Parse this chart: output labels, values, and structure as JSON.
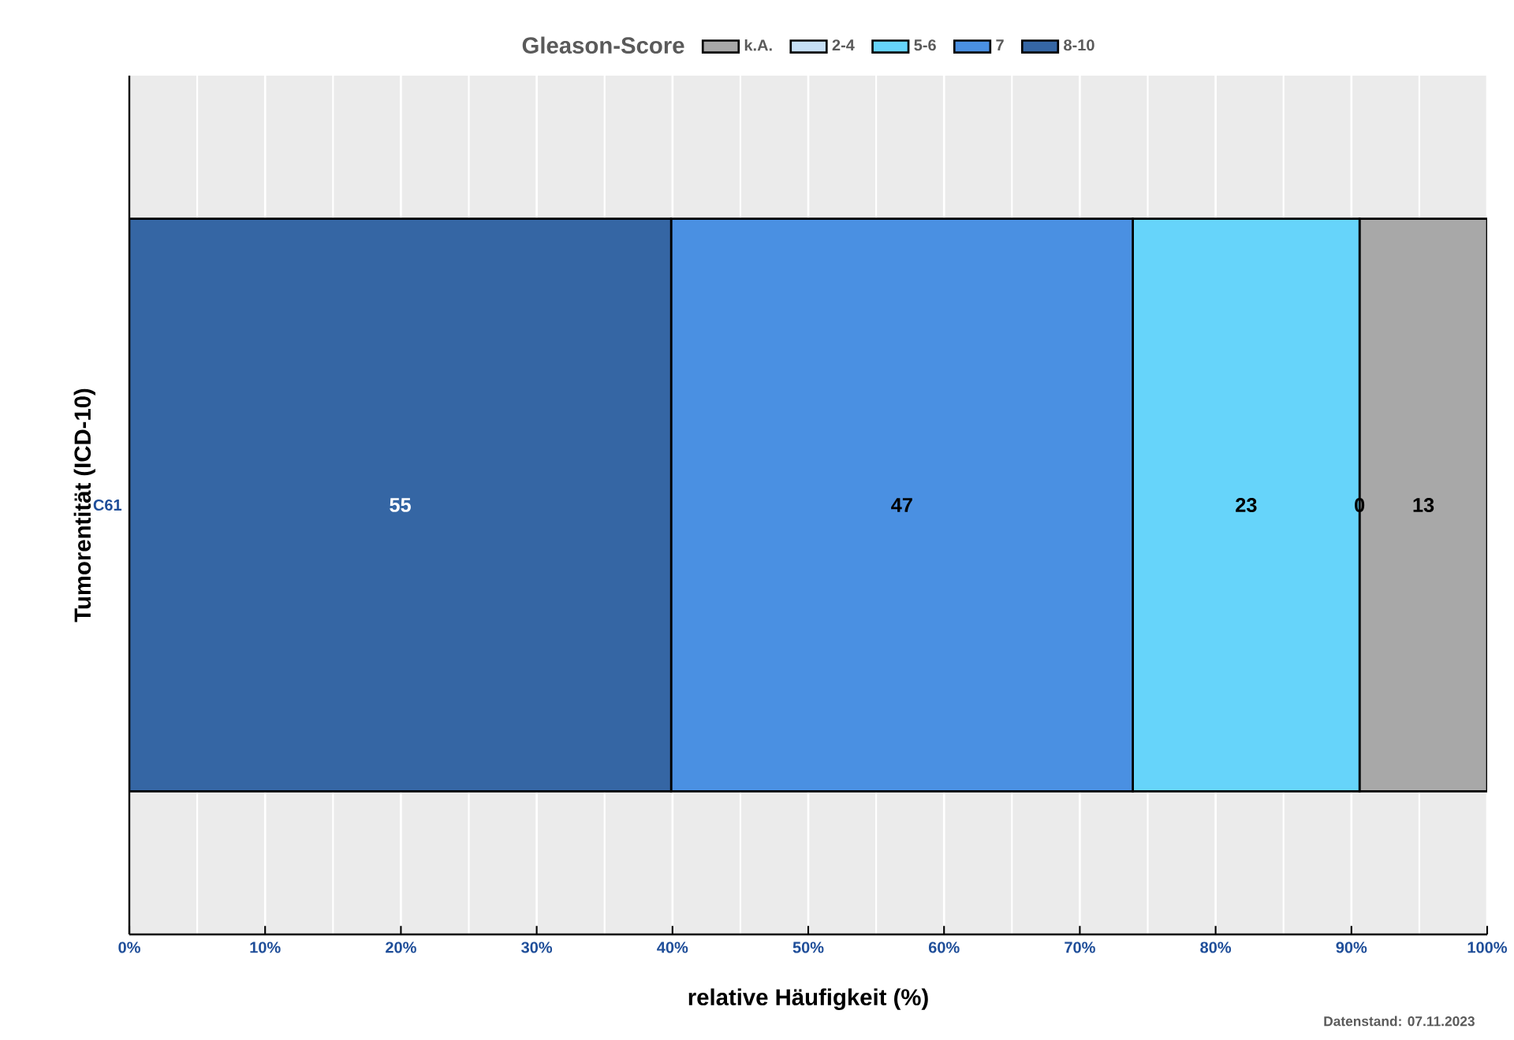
{
  "chart_data": {
    "type": "bar",
    "orientation": "horizontal",
    "stacked": true,
    "categories": [
      "C61"
    ],
    "series": [
      {
        "name": "8-10",
        "color": "#3566a4",
        "values": [
          39.9
        ]
      },
      {
        "name": "7",
        "color": "#4a90e2",
        "values": [
          34.0
        ]
      },
      {
        "name": "5-6",
        "color": "#66d4fa",
        "values": [
          16.7
        ]
      },
      {
        "name": "2-4",
        "color": "#c6dff5",
        "values": [
          0
        ]
      },
      {
        "name": "k.A.",
        "color": "#a8a8a8",
        "values": [
          9.4
        ]
      }
    ],
    "legend_title": "Gleason-Score",
    "legend": "top",
    "xlabel": "relative Häufigkeit (%)",
    "ylabel": "Tumorentität (ICD-10)",
    "xlim": [
      0,
      100
    ],
    "xticks": [
      {
        "value": 0,
        "label": "0%"
      },
      {
        "value": 10,
        "label": "10%"
      },
      {
        "value": 20,
        "label": "20%"
      },
      {
        "value": 30,
        "label": "30%"
      },
      {
        "value": 40,
        "label": "40%"
      },
      {
        "value": 50,
        "label": "50%"
      },
      {
        "value": 60,
        "label": "60%"
      },
      {
        "value": 70,
        "label": "70%"
      },
      {
        "value": 80,
        "label": "80%"
      },
      {
        "value": 90,
        "label": "90%"
      },
      {
        "value": 100,
        "label": "100%"
      }
    ],
    "grid": "x",
    "annotations": [
      "55",
      "47",
      "23",
      "0",
      "13",
      "Datenstand: 07.11.2023"
    ]
  }
}
